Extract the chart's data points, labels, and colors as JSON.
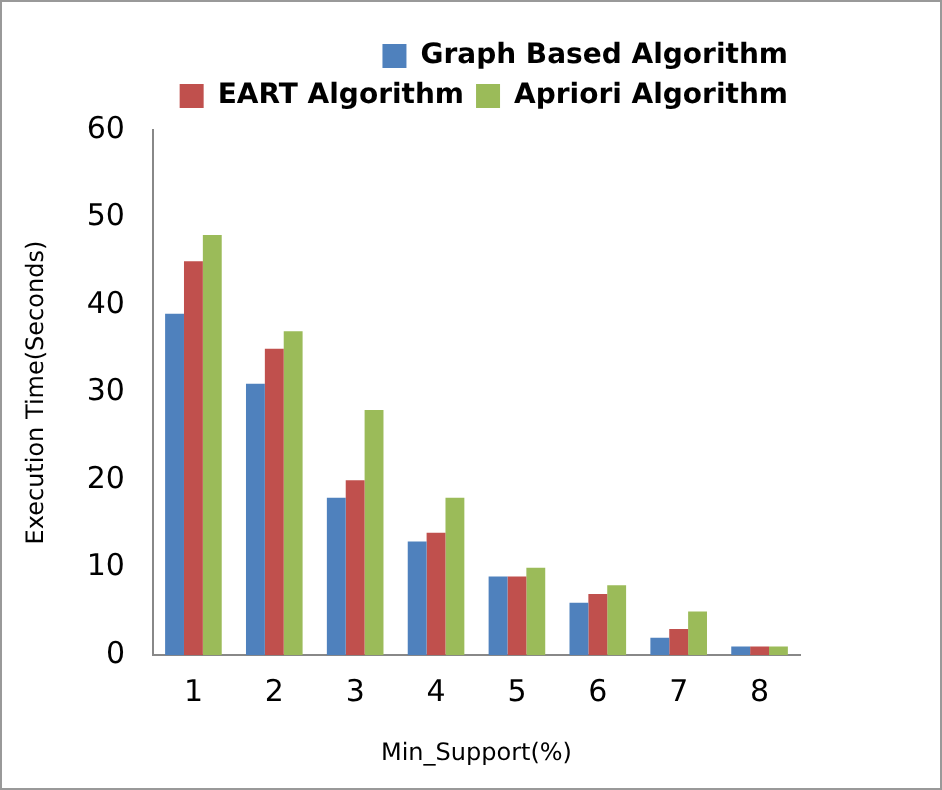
{
  "chart_data": {
    "type": "bar",
    "xlabel": "Min_Support(%)",
    "ylabel": "Execution Time(Seconds)",
    "categories": [
      "1",
      "2",
      "3",
      "4",
      "5",
      "6",
      "7",
      "8"
    ],
    "series": [
      {
        "name": "Graph Based Algorithm",
        "color": "#4f81bd",
        "values": [
          39,
          31,
          18,
          13,
          9,
          6,
          2,
          1
        ]
      },
      {
        "name": "EART Algorithm",
        "color": "#c0504d",
        "values": [
          45,
          35,
          20,
          14,
          9,
          7,
          3,
          1
        ]
      },
      {
        "name": "Apriori Algorithm",
        "color": "#9bbb59",
        "values": [
          48,
          37,
          28,
          18,
          10,
          8,
          5,
          1
        ]
      }
    ],
    "ylim": [
      0,
      60
    ],
    "yticks": [
      0,
      10,
      20,
      30,
      40,
      50,
      60
    ],
    "grid": false,
    "legend": "top right"
  }
}
